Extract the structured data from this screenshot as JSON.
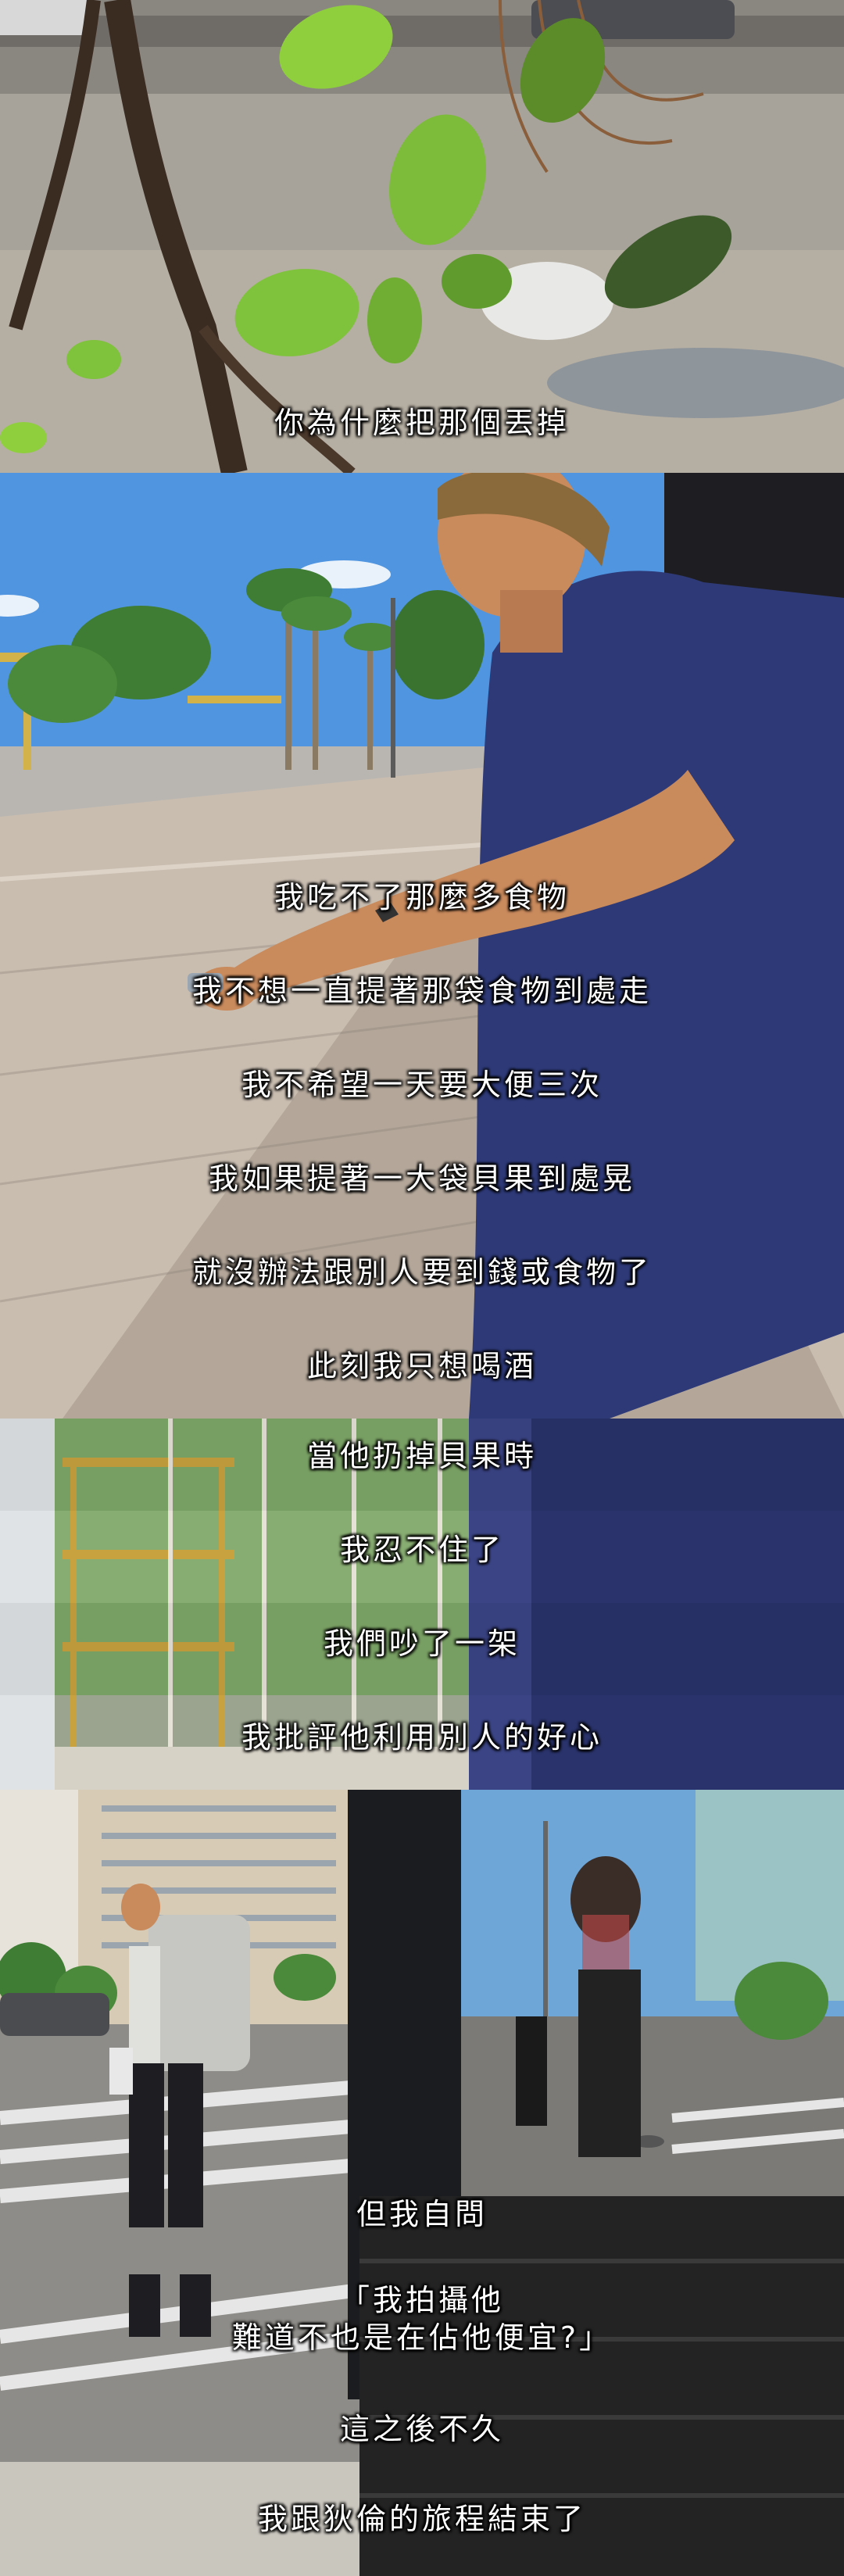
{
  "captions": {
    "c1": "你為什麼把那個丟掉",
    "c2": "我吃不了那麼多食物",
    "c3": "我不想一直提著那袋食物到處走",
    "c4": "我不希望一天要大便三次",
    "c5": "我如果提著一大袋貝果到處晃",
    "c6": "就沒辦法跟別人要到錢或食物了",
    "c7": "此刻我只想喝酒",
    "c8": "當他扔掉貝果時",
    "c9": "我忍不住了",
    "c10": "我們吵了一架",
    "c11": "我批評他利用別人的好心",
    "c12": "但我自問",
    "c13a": "「我拍攝他",
    "c13b": "難道不也是在佔他便宜?」",
    "c14": "這之後不久",
    "c15": "我跟狄倫的旅程結束了"
  },
  "colors": {
    "sky": "#4f95e0",
    "pavement": "#c9bdb0",
    "shirt": "#2e3a78",
    "skin": "#c98a5c",
    "leaf": "#7dbb3a"
  }
}
